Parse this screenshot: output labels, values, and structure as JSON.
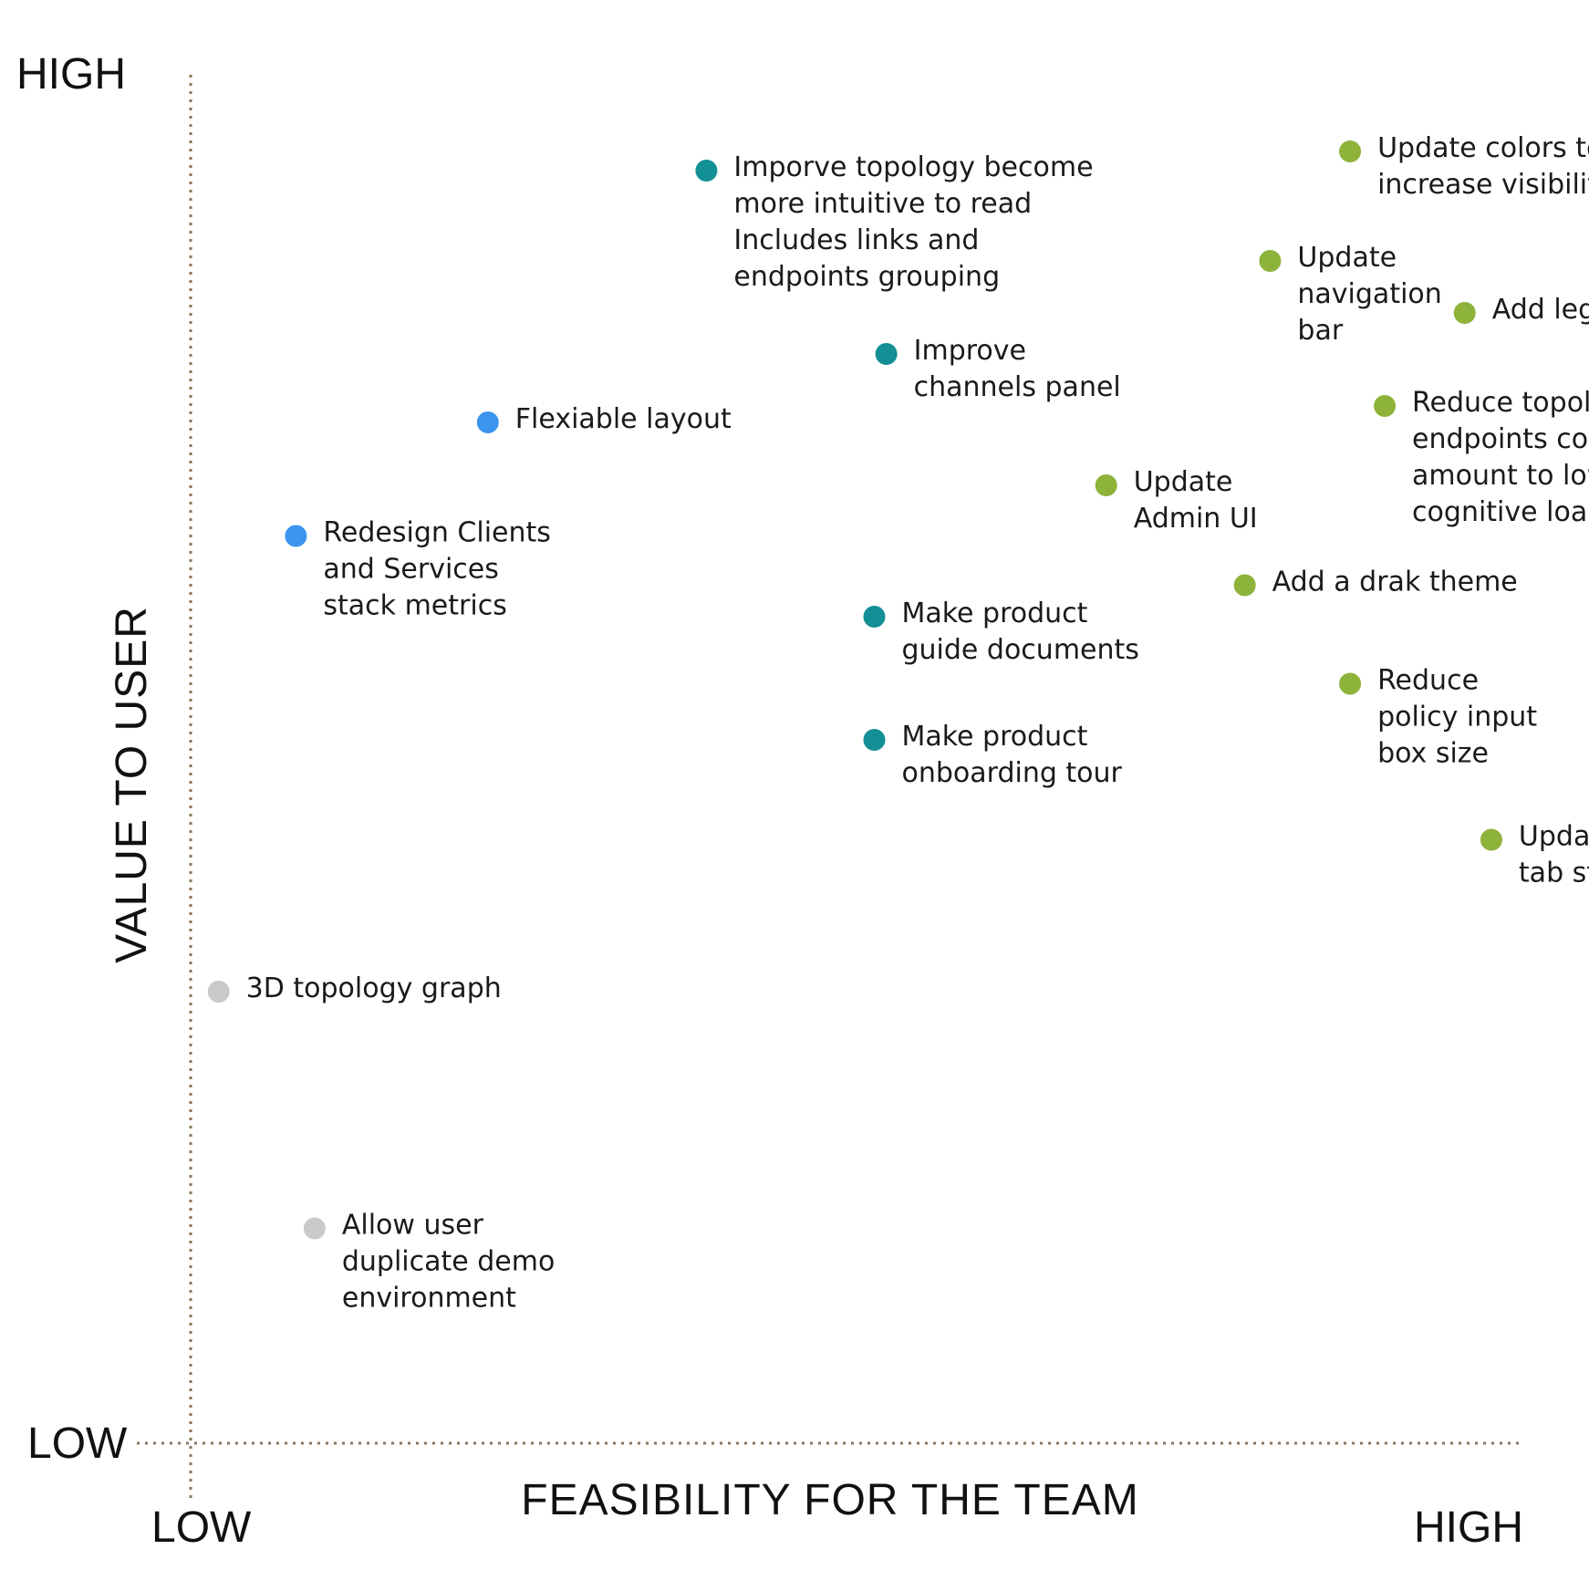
{
  "chart_data": {
    "type": "scatter",
    "xlabel": "FEASIBILITY FOR THE TEAM",
    "ylabel": "VALUE TO USER",
    "x_ticks": {
      "low": "LOW",
      "high": "HIGH"
    },
    "y_ticks": {
      "low": "LOW",
      "high": "HIGH"
    },
    "xlim": [
      0,
      100
    ],
    "ylim": [
      0,
      100
    ],
    "grid": false,
    "colors": {
      "green": "#8db33a",
      "teal": "#138f96",
      "blue": "#3b95ef",
      "gray": "#c9c9c9",
      "axis_line": "#8a7560"
    },
    "points": [
      {
        "x": 87.0,
        "y": 94.4,
        "color": "green",
        "label": [
          "Update colors to",
          "increase visibility"
        ]
      },
      {
        "x": 81.0,
        "y": 86.4,
        "color": "green",
        "label": [
          "Update",
          "navigation",
          "bar"
        ]
      },
      {
        "x": 95.6,
        "y": 82.6,
        "color": "green",
        "label": [
          "Add legend"
        ]
      },
      {
        "x": 89.6,
        "y": 75.8,
        "color": "green",
        "label": [
          "Reduce topology",
          "endpoints color",
          "amount to lower",
          "cognitive load"
        ]
      },
      {
        "x": 68.7,
        "y": 70.0,
        "color": "green",
        "label": [
          "Update",
          "Admin UI"
        ]
      },
      {
        "x": 79.1,
        "y": 62.7,
        "color": "green",
        "label": [
          "Add a drak theme"
        ]
      },
      {
        "x": 87.0,
        "y": 55.5,
        "color": "green",
        "label": [
          "Reduce",
          "policy input",
          "box size"
        ]
      },
      {
        "x": 97.6,
        "y": 44.1,
        "color": "green",
        "label": [
          "Update",
          "tab style"
        ]
      },
      {
        "x": 38.7,
        "y": 93.0,
        "color": "teal",
        "label": [
          "Imporve topology become",
          "more intuitive to read",
          "Includes links and",
          "endpoints grouping"
        ]
      },
      {
        "x": 52.2,
        "y": 79.6,
        "color": "teal",
        "label": [
          "Improve",
          "channels panel"
        ]
      },
      {
        "x": 51.3,
        "y": 60.4,
        "color": "teal",
        "label": [
          "Make product",
          "guide documents"
        ]
      },
      {
        "x": 51.3,
        "y": 51.4,
        "color": "teal",
        "label": [
          "Make product",
          "onboarding tour"
        ]
      },
      {
        "x": 22.3,
        "y": 74.6,
        "color": "blue",
        "label": [
          "Flexiable layout"
        ]
      },
      {
        "x": 7.9,
        "y": 66.3,
        "color": "blue",
        "label": [
          "Redesign Clients",
          "and Services",
          "stack metrics"
        ]
      },
      {
        "x": 2.1,
        "y": 33.0,
        "color": "gray",
        "label": [
          "3D topology graph"
        ]
      },
      {
        "x": 9.3,
        "y": 15.7,
        "color": "gray",
        "label": [
          "Allow user",
          "duplicate demo",
          "environment"
        ]
      }
    ]
  }
}
